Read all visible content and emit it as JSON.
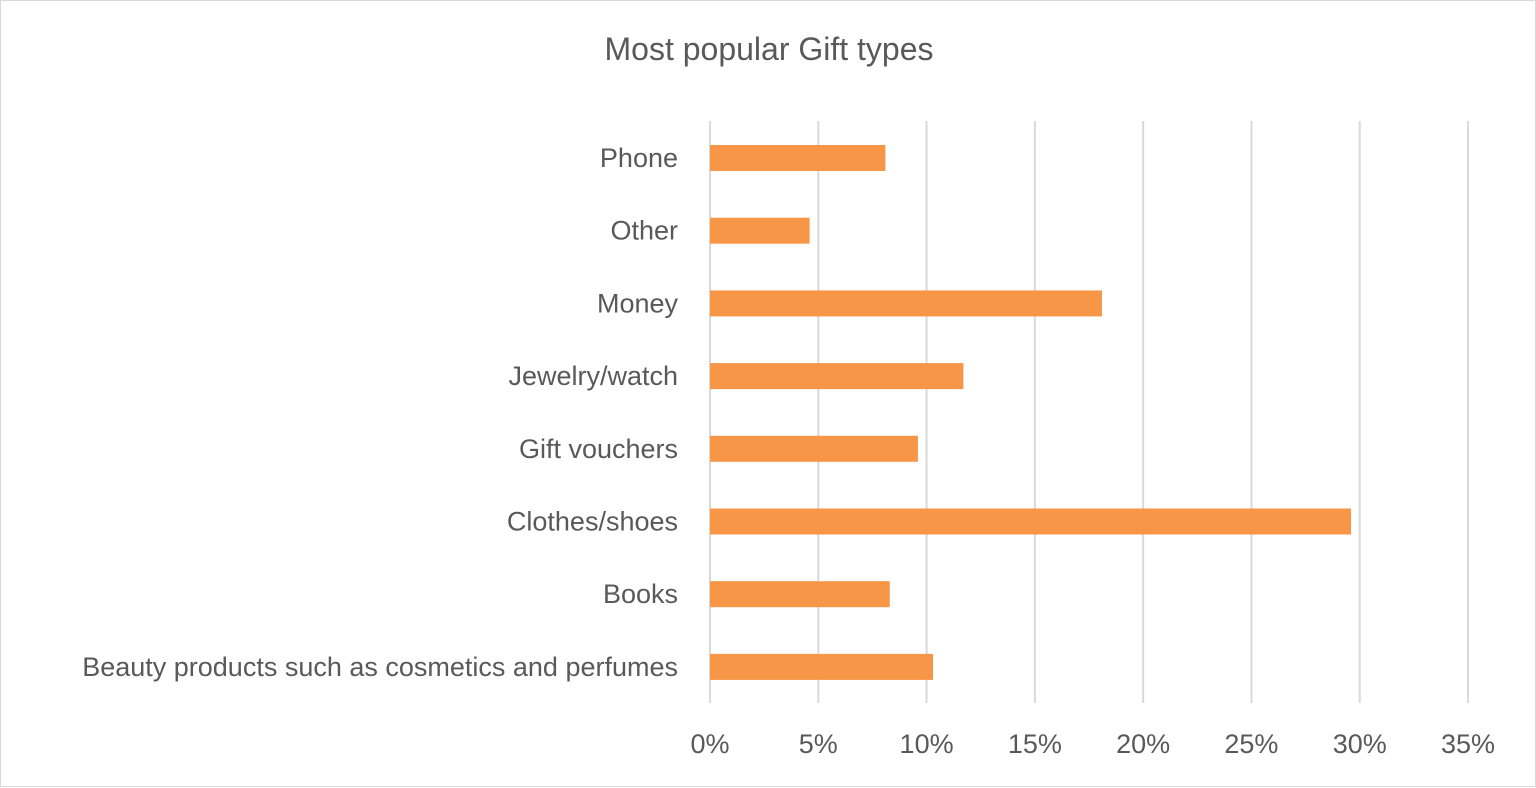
{
  "chart_data": {
    "type": "bar",
    "orientation": "horizontal",
    "title": "Most popular Gift types",
    "xlabel": "",
    "ylabel": "",
    "categories": [
      "Phone",
      "Other",
      "Money",
      "Jewelry/watch",
      "Gift vouchers",
      "Clothes/shoes",
      "Books",
      "Beauty products such as cosmetics and perfumes"
    ],
    "values": [
      8.1,
      4.6,
      18.1,
      11.7,
      9.6,
      29.6,
      8.3,
      10.3
    ],
    "xlim": [
      0,
      35
    ],
    "x_ticks": [
      "0%",
      "5%",
      "10%",
      "15%",
      "20%",
      "25%",
      "30%",
      "35%"
    ],
    "grid": "vertical",
    "legend": "none",
    "bar_color": "#f79646",
    "grid_color": "#d9d9d9",
    "text_color": "#595959"
  }
}
